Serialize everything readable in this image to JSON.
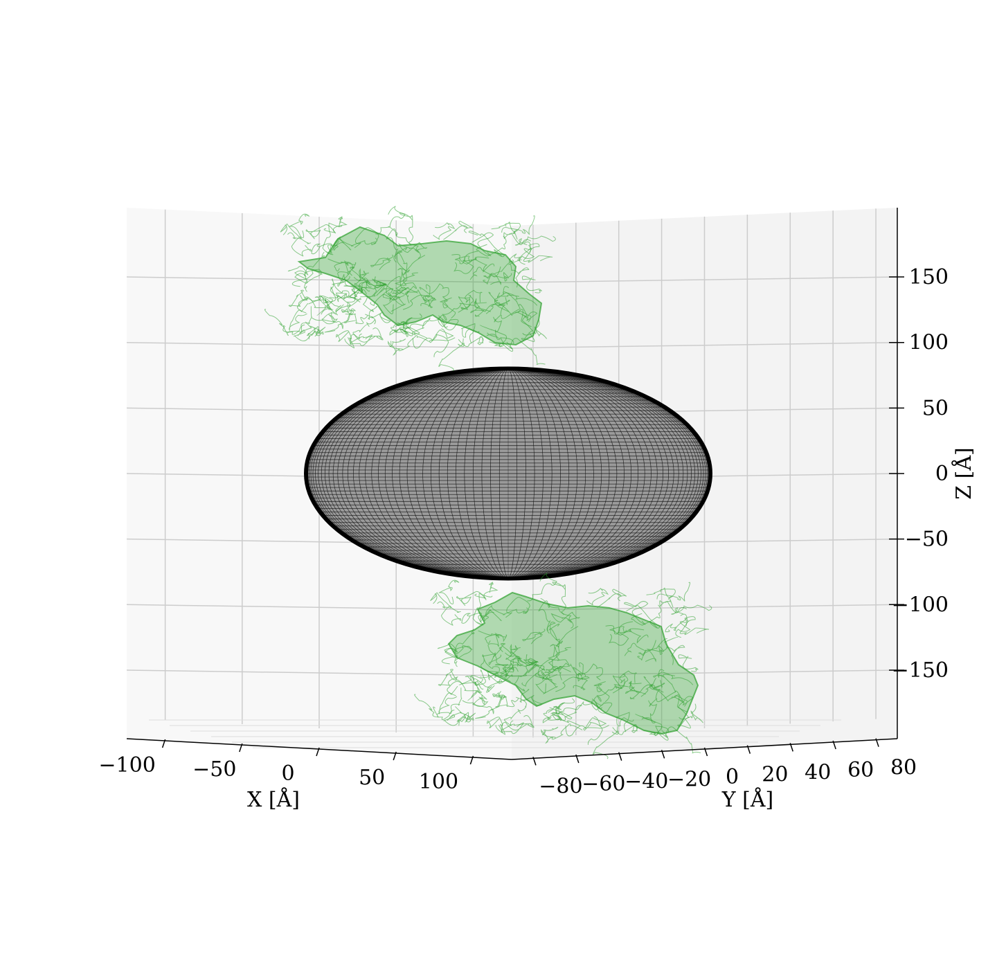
{
  "chart_data": {
    "type": "3d-surface",
    "x_axis": {
      "label": "X [Å]",
      "ticks": [
        "−100",
        "−50",
        "0",
        "50",
        "100"
      ],
      "tick_values": [
        -100,
        -50,
        0,
        50,
        100
      ],
      "lim": [
        -125,
        125
      ]
    },
    "y_axis": {
      "label": "Y [Å]",
      "ticks": [
        "−80",
        "−60",
        "−40",
        "−20",
        "0",
        "20",
        "40",
        "60",
        "80"
      ],
      "tick_values": [
        -80,
        -60,
        -40,
        -20,
        0,
        20,
        40,
        60,
        80
      ],
      "lim": [
        -90,
        90
      ]
    },
    "z_axis": {
      "label": "Z [Å]",
      "ticks": [
        "150",
        "100",
        "50",
        "0",
        "−50",
        "−100",
        "−150"
      ],
      "tick_values": [
        150,
        100,
        50,
        0,
        -50,
        -100,
        -150
      ],
      "lim": [
        -195,
        200
      ]
    },
    "grid": true,
    "series": [
      {
        "kind": "ellipsoid-wireframe",
        "color": "#000000",
        "center": [
          0,
          0,
          0
        ],
        "semi_axes": [
          65,
          65,
          80
        ]
      },
      {
        "kind": "molecular-surface",
        "color": "#2ca02c",
        "position": "top",
        "z_range": [
          110,
          190
        ]
      },
      {
        "kind": "molecular-surface",
        "color": "#2ca02c",
        "position": "bottom",
        "z_range": [
          -195,
          -90
        ]
      }
    ]
  }
}
